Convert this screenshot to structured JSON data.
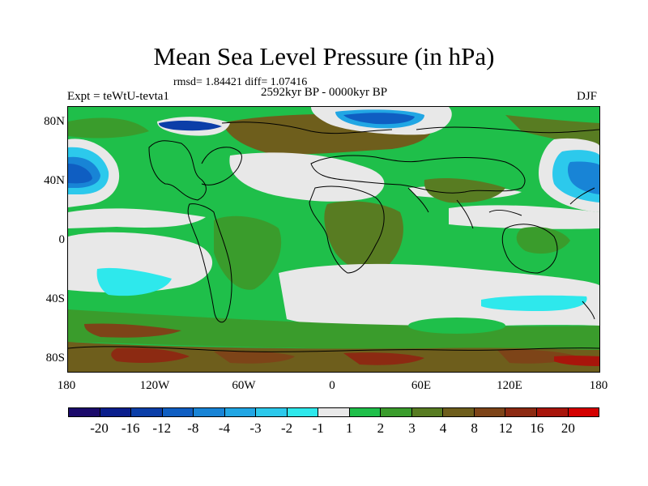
{
  "title": "Mean Sea Level Pressure (in hPa)",
  "stats": "rmsd= 1.84421 diff= 1.07416",
  "period": "2592kyr BP - 0000kyr BP",
  "experiment": "Expt = teWtU-tevta1",
  "season": "DJF",
  "y_ticks": [
    "80N",
    "40N",
    "0",
    "40S",
    "80S"
  ],
  "x_ticks": [
    "180",
    "120W",
    "60W",
    "0",
    "60E",
    "120E",
    "180"
  ],
  "colors": {
    "neg20": "#1b0a6b",
    "neg16": "#0a1e8c",
    "neg12": "#0b3ea8",
    "neg8": "#0f5ec2",
    "neg4": "#1884d6",
    "neg3": "#21a6e4",
    "neg2": "#2cc9ec",
    "neg1": "#2ee8ec",
    "zero": "#e8e8e8",
    "pos1": "#1fbf4a",
    "pos2": "#3a9c2c",
    "pos3": "#587c22",
    "pos4": "#6e5e1c",
    "pos8": "#7d4418",
    "pos12": "#8c2a12",
    "pos16": "#a8150b",
    "pos20": "#d40000"
  },
  "colorbar_labels": [
    "-20",
    "-16",
    "-12",
    "-8",
    "-4",
    "-3",
    "-2",
    "-1",
    "1",
    "2",
    "3",
    "4",
    "8",
    "12",
    "16",
    "20"
  ]
}
